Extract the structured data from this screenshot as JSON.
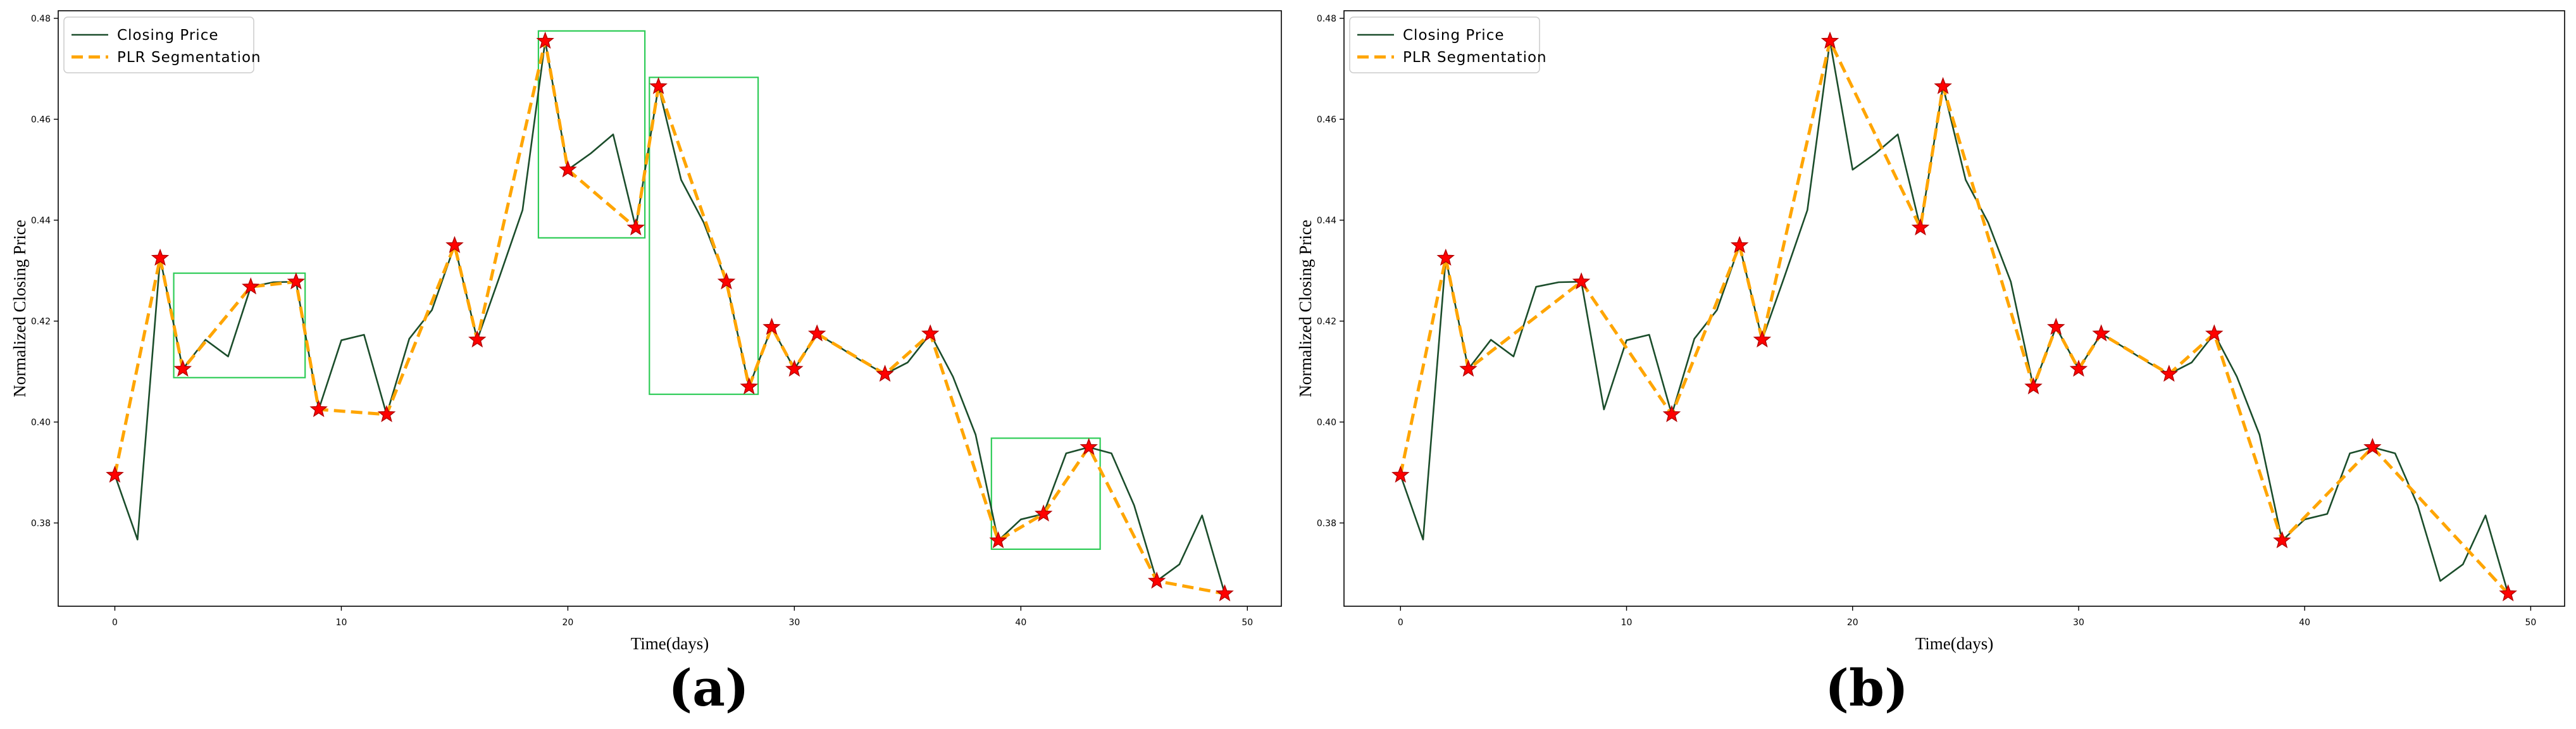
{
  "colors": {
    "closing": "#1b4d2b",
    "plr": "#ffa500",
    "marker_fill": "#ff0000",
    "marker_edge": "#b30000",
    "box": "#2ecc57",
    "frame": "#000000"
  },
  "chart_data": [
    {
      "type": "line",
      "panel_label": "(a)",
      "xlabel": "Time(days)",
      "ylabel": "Normalized Closing Price",
      "xlim": [
        -2.5,
        51.5
      ],
      "ylim": [
        0.3635,
        0.4815
      ],
      "xticks": [
        0,
        10,
        20,
        30,
        40,
        50
      ],
      "xtick_labels": [
        "0",
        "10",
        "20",
        "30",
        "40",
        "50"
      ],
      "yticks": [
        0.38,
        0.4,
        0.42,
        0.44,
        0.46,
        0.48
      ],
      "ytick_labels": [
        "0.38",
        "0.40",
        "0.42",
        "0.44",
        "0.46",
        "0.48"
      ],
      "grid": false,
      "legend_position": "top-left",
      "legend": [
        "Closing Price",
        "PLR Segmentation"
      ],
      "series": [
        {
          "name": "Closing Price",
          "style": "solid",
          "x": [
            0,
            1,
            2,
            3,
            4,
            5,
            6,
            7,
            8,
            9,
            10,
            11,
            12,
            13,
            14,
            15,
            16,
            17,
            18,
            19,
            20,
            21,
            22,
            23,
            24,
            25,
            26,
            27,
            28,
            29,
            30,
            31,
            32,
            33,
            34,
            35,
            36,
            37,
            38,
            39,
            40,
            41,
            42,
            43,
            44,
            45,
            46,
            47,
            48,
            49
          ],
          "y": [
            0.3895,
            0.3767,
            0.4325,
            0.4105,
            0.4163,
            0.413,
            0.4268,
            0.4277,
            0.4278,
            0.4025,
            0.4162,
            0.4173,
            0.4015,
            0.4165,
            0.4222,
            0.435,
            0.4163,
            0.429,
            0.442,
            0.4755,
            0.45,
            0.4532,
            0.457,
            0.4385,
            0.4665,
            0.448,
            0.4395,
            0.4278,
            0.407,
            0.4188,
            0.4105,
            0.4175,
            0.4148,
            0.412,
            0.4095,
            0.4118,
            0.4175,
            0.409,
            0.3975,
            0.3765,
            0.3807,
            0.3818,
            0.3938,
            0.395,
            0.3938,
            0.3835,
            0.3685,
            0.3718,
            0.3815,
            0.366
          ]
        },
        {
          "name": "PLR Segmentation",
          "style": "dashed",
          "x": [
            0,
            2,
            3,
            6,
            8,
            9,
            12,
            15,
            16,
            19,
            20,
            23,
            24,
            27,
            28,
            29,
            30,
            31,
            34,
            36,
            39,
            41,
            43,
            46,
            49
          ],
          "y": [
            0.3895,
            0.4325,
            0.4105,
            0.4268,
            0.4278,
            0.4025,
            0.4015,
            0.435,
            0.4163,
            0.4755,
            0.45,
            0.4385,
            0.4665,
            0.4278,
            0.407,
            0.4188,
            0.4105,
            0.4175,
            0.4095,
            0.4175,
            0.3765,
            0.3818,
            0.395,
            0.3685,
            0.366
          ]
        }
      ],
      "highlight_boxes": [
        {
          "x0": 2.6,
          "x1": 8.4,
          "y0": 0.4088,
          "y1": 0.4295
        },
        {
          "x0": 18.7,
          "x1": 23.4,
          "y0": 0.4365,
          "y1": 0.4775
        },
        {
          "x0": 23.6,
          "x1": 28.4,
          "y0": 0.4055,
          "y1": 0.4683
        },
        {
          "x0": 38.7,
          "x1": 43.5,
          "y0": 0.3748,
          "y1": 0.3968
        }
      ]
    },
    {
      "type": "line",
      "panel_label": "(b)",
      "xlabel": "Time(days)",
      "ylabel": "Normalized Closing Price",
      "xlim": [
        -2.5,
        51.5
      ],
      "ylim": [
        0.3635,
        0.4815
      ],
      "xticks": [
        0,
        10,
        20,
        30,
        40,
        50
      ],
      "xtick_labels": [
        "0",
        "10",
        "20",
        "30",
        "40",
        "50"
      ],
      "yticks": [
        0.38,
        0.4,
        0.42,
        0.44,
        0.46,
        0.48
      ],
      "ytick_labels": [
        "0.38",
        "0.40",
        "0.42",
        "0.44",
        "0.46",
        "0.48"
      ],
      "grid": false,
      "legend_position": "top-left",
      "legend": [
        "Closing Price",
        "PLR Segmentation"
      ],
      "series": [
        {
          "name": "Closing Price",
          "style": "solid",
          "x": [
            0,
            1,
            2,
            3,
            4,
            5,
            6,
            7,
            8,
            9,
            10,
            11,
            12,
            13,
            14,
            15,
            16,
            17,
            18,
            19,
            20,
            21,
            22,
            23,
            24,
            25,
            26,
            27,
            28,
            29,
            30,
            31,
            32,
            33,
            34,
            35,
            36,
            37,
            38,
            39,
            40,
            41,
            42,
            43,
            44,
            45,
            46,
            47,
            48,
            49
          ],
          "y": [
            0.3895,
            0.3767,
            0.4325,
            0.4105,
            0.4163,
            0.413,
            0.4268,
            0.4277,
            0.4278,
            0.4025,
            0.4162,
            0.4173,
            0.4015,
            0.4165,
            0.4222,
            0.435,
            0.4163,
            0.429,
            0.442,
            0.4755,
            0.45,
            0.4532,
            0.457,
            0.4385,
            0.4665,
            0.448,
            0.4395,
            0.4278,
            0.407,
            0.4188,
            0.4105,
            0.4175,
            0.4148,
            0.412,
            0.4095,
            0.4118,
            0.4175,
            0.409,
            0.3975,
            0.3765,
            0.3807,
            0.3818,
            0.3938,
            0.395,
            0.3938,
            0.3835,
            0.3685,
            0.3718,
            0.3815,
            0.366
          ]
        },
        {
          "name": "PLR Segmentation",
          "style": "dashed",
          "x": [
            0,
            2,
            3,
            8,
            12,
            15,
            16,
            19,
            23,
            24,
            28,
            29,
            30,
            31,
            34,
            36,
            39,
            43,
            49
          ],
          "y": [
            0.3895,
            0.4325,
            0.4105,
            0.4278,
            0.4015,
            0.435,
            0.4163,
            0.4755,
            0.4385,
            0.4665,
            0.407,
            0.4188,
            0.4105,
            0.4175,
            0.4095,
            0.4175,
            0.3765,
            0.395,
            0.366
          ]
        }
      ],
      "highlight_boxes": []
    }
  ]
}
